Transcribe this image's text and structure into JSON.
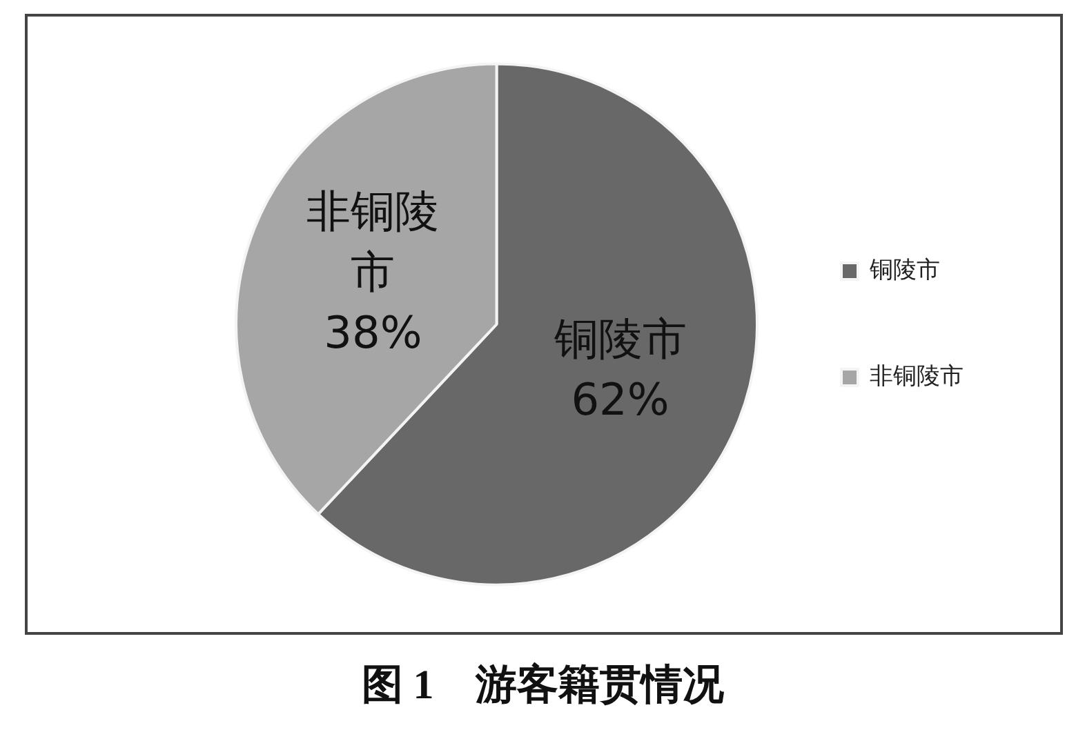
{
  "chart_data": {
    "type": "pie",
    "title": "图 1　游客籍贯情况",
    "categories": [
      "铜陵市",
      "非铜陵市"
    ],
    "values": [
      62,
      38
    ],
    "value_labels": [
      "62%",
      "38%"
    ],
    "colors": [
      "#686868",
      "#a6a6a6"
    ],
    "legend": "right"
  }
}
